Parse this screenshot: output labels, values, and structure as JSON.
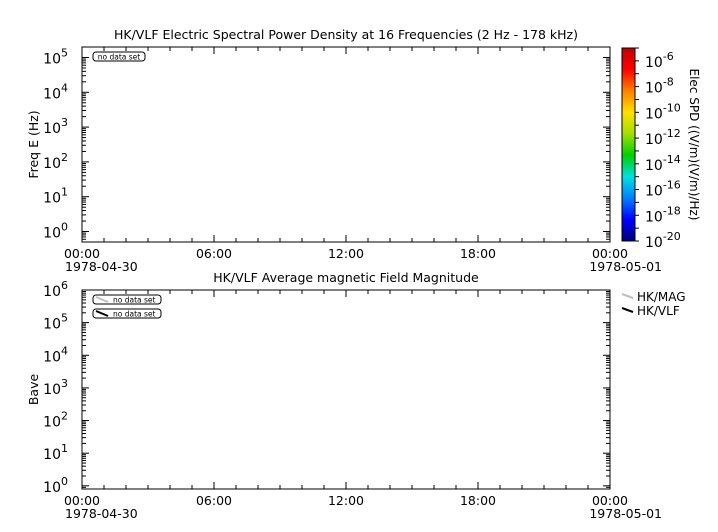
{
  "chart_data": [
    {
      "type": "heatmap",
      "title": "HK/VLF  Electric Spectral Power Density at 16 Frequencies (2 Hz - 178 kHz)",
      "ylabel": "Freq E (Hz)",
      "yscale": "log",
      "ylim": [
        0.5,
        200000
      ],
      "yticks": [
        {
          "exp": "0",
          "value": 1
        },
        {
          "exp": "1",
          "value": 10
        },
        {
          "exp": "2",
          "value": 100
        },
        {
          "exp": "3",
          "value": 1000
        },
        {
          "exp": "4",
          "value": 10000
        },
        {
          "exp": "5",
          "value": 100000
        }
      ],
      "xlim_hours": [
        0,
        24
      ],
      "xticks": [
        {
          "label": "00:00",
          "hour": 0
        },
        {
          "label": "06:00",
          "hour": 6
        },
        {
          "label": "12:00",
          "hour": 12
        },
        {
          "label": "18:00",
          "hour": 18
        },
        {
          "label": "00:00",
          "hour": 24
        }
      ],
      "date_start": "1978-04-30",
      "date_end": "1978-05-01",
      "annotation": "no data set",
      "colorbar": {
        "label": "Elec SPD ((V/m)(V/m)/Hz)",
        "scale": "log",
        "range": [
          1e-20,
          1e-05
        ],
        "ticks": [
          {
            "exp": "-6",
            "value": 1e-06
          },
          {
            "exp": "-8",
            "value": 1e-08
          },
          {
            "exp": "-10",
            "value": 1e-10
          },
          {
            "exp": "-12",
            "value": 1e-12
          },
          {
            "exp": "-14",
            "value": 1e-14
          },
          {
            "exp": "-16",
            "value": 1e-16
          },
          {
            "exp": "-18",
            "value": 1e-18
          },
          {
            "exp": "-20",
            "value": 1e-20
          }
        ],
        "colors": [
          "#00007f",
          "#0000ff",
          "#0080ff",
          "#00e0e0",
          "#00d000",
          "#a0e000",
          "#ffe000",
          "#ff8000",
          "#ff0000",
          "#c00000"
        ]
      },
      "values": []
    },
    {
      "type": "line",
      "title": "HK/VLF  Average magnetic Field Magnitude",
      "ylabel": "Bave",
      "yscale": "log",
      "ylim": [
        0.8,
        1000000
      ],
      "yticks": [
        {
          "exp": "0",
          "value": 1
        },
        {
          "exp": "1",
          "value": 10
        },
        {
          "exp": "2",
          "value": 100
        },
        {
          "exp": "3",
          "value": 1000
        },
        {
          "exp": "4",
          "value": 10000
        },
        {
          "exp": "5",
          "value": 100000
        },
        {
          "exp": "6",
          "value": 1000000
        }
      ],
      "xlim_hours": [
        0,
        24
      ],
      "xticks": [
        {
          "label": "00:00",
          "hour": 0
        },
        {
          "label": "06:00",
          "hour": 6
        },
        {
          "label": "12:00",
          "hour": 12
        },
        {
          "label": "18:00",
          "hour": 18
        },
        {
          "label": "00:00",
          "hour": 24
        }
      ],
      "date_start": "1978-04-30",
      "date_end": "1978-05-01",
      "series": [
        {
          "name": "HK/MAG",
          "color": "#c0c0c0",
          "values": [],
          "annotation": "no data set"
        },
        {
          "name": "HK/VLF",
          "color": "#000000",
          "values": [],
          "annotation": "no data set"
        }
      ]
    }
  ]
}
